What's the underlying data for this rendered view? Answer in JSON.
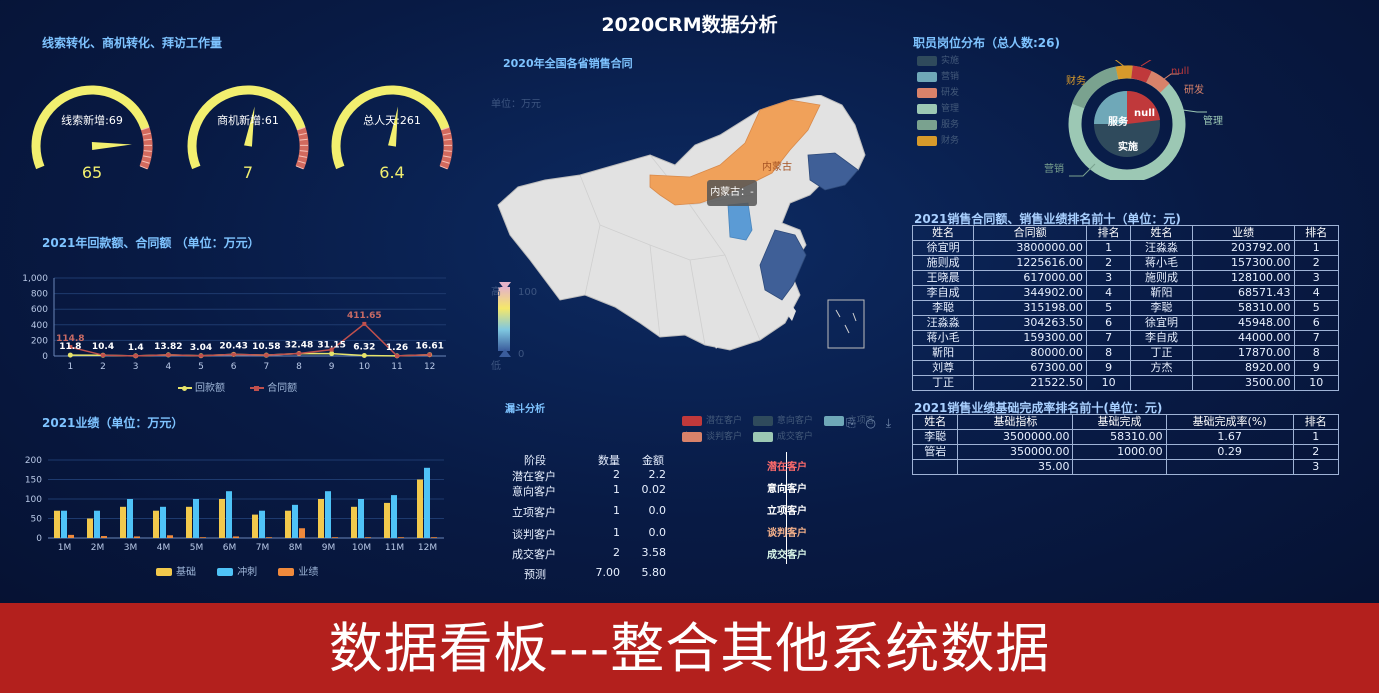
{
  "page_title": "2020CRM数据分析",
  "banner": "数据看板---整合其他系统数据",
  "gauges": {
    "title": "线索转化、商机转化、拜访工作量",
    "items": [
      {
        "label": "线索新增:69",
        "value": "65",
        "fraction": 0.65
      },
      {
        "label": "商机新增:61",
        "value": "7",
        "fraction": 0.07
      },
      {
        "label": "总人天:261",
        "value": "6.4",
        "fraction": 0.064
      }
    ]
  },
  "payments": {
    "title": "2021年回款额、合同额 （单位：万元）",
    "legend": [
      "回款额",
      "合同额"
    ],
    "chart_data": {
      "type": "line",
      "x": [
        "1",
        "2",
        "3",
        "4",
        "5",
        "6",
        "7",
        "8",
        "9",
        "10",
        "11",
        "12"
      ],
      "y_ticks": [
        "0",
        "200",
        "400",
        "600",
        "800",
        "1,000"
      ],
      "ylim": [
        0,
        1000
      ],
      "series": [
        {
          "name": "回款额",
          "values": [
            11.8,
            10.4,
            1.4,
            13.82,
            3.04,
            20.43,
            10.58,
            32.48,
            31.15,
            6.32,
            1.26,
            16.61
          ],
          "color": "#e6e36a"
        },
        {
          "name": "合同额",
          "values": [
            114.8,
            10.4,
            1.4,
            13.82,
            3.04,
            20.43,
            10.58,
            32.48,
            81.15,
            411.65,
            1.26,
            16.61
          ],
          "color": "#c0504d"
        }
      ],
      "labels": [
        {
          "text": "114.8",
          "i": 0,
          "v": 114.8,
          "color": "#c86a64"
        },
        {
          "text": "11.8",
          "i": 0,
          "v": 11.8,
          "color": "#ffffff"
        },
        {
          "text": "10.4",
          "i": 1,
          "v": 10.4,
          "color": "#ffffff"
        },
        {
          "text": "1.4",
          "i": 2,
          "v": 1.4,
          "color": "#ffffff"
        },
        {
          "text": "13.82",
          "i": 3,
          "v": 13.82,
          "color": "#ffffff"
        },
        {
          "text": "3.04",
          "i": 4,
          "v": 3.04,
          "color": "#ffffff"
        },
        {
          "text": "20.43",
          "i": 5,
          "v": 20.43,
          "color": "#ffffff"
        },
        {
          "text": "10.58",
          "i": 6,
          "v": 10.58,
          "color": "#ffffff"
        },
        {
          "text": "32.48",
          "i": 7,
          "v": 32.48,
          "color": "#ffffff"
        },
        {
          "text": "31.15",
          "i": 8,
          "v": 31.15,
          "color": "#ffffff"
        },
        {
          "text": "411.65",
          "i": 9,
          "v": 411.65,
          "color": "#c86a64"
        },
        {
          "text": "6.32",
          "i": 9,
          "v": 6.32,
          "color": "#ffffff"
        },
        {
          "text": "1.26",
          "i": 10,
          "v": 1.26,
          "color": "#ffffff"
        },
        {
          "text": "16.61",
          "i": 11,
          "v": 16.61,
          "color": "#ffffff"
        }
      ]
    }
  },
  "performance": {
    "title": "2021业绩（单位：万元）",
    "legend": [
      "基础",
      "冲刺",
      "业绩"
    ],
    "chart_data": {
      "type": "bar",
      "categories": [
        "1M",
        "2M",
        "3M",
        "4M",
        "5M",
        "6M",
        "7M",
        "8M",
        "9M",
        "10M",
        "11M",
        "12M"
      ],
      "y_ticks": [
        "0",
        "50",
        "100",
        "150",
        "200"
      ],
      "ylim": [
        0,
        200
      ],
      "series": [
        {
          "name": "基础",
          "color": "#f2c94c",
          "values": [
            70,
            50,
            80,
            70,
            80,
            100,
            60,
            70,
            100,
            80,
            90,
            150
          ]
        },
        {
          "name": "冲刺",
          "color": "#4fc3f7",
          "values": [
            70,
            70,
            100,
            80,
            100,
            120,
            70,
            85,
            120,
            100,
            110,
            180
          ]
        },
        {
          "name": "业绩",
          "color": "#f08a3c",
          "values": [
            8,
            5,
            4,
            7,
            2,
            4,
            2,
            25,
            2,
            2,
            2,
            2
          ]
        }
      ]
    }
  },
  "map": {
    "title": "2020年全国各省销售合同",
    "unit": "单位：万元",
    "scale_high": "高",
    "scale_low": "低",
    "scale_max": "100",
    "scale_min": "0",
    "region_label": "内蒙古",
    "tooltip": "内蒙古：-"
  },
  "funnel": {
    "title": "漏斗分析",
    "legend": [
      "潜在客户",
      "意向客户",
      "立项客户",
      "谈判客户",
      "成交客户"
    ],
    "legend_colors": [
      "#c0393b",
      "#2f4a5c",
      "#6fa8b8",
      "#d9826a",
      "#9cc8b4"
    ],
    "headers": [
      "阶段",
      "数量",
      "金额"
    ],
    "rows": [
      {
        "stage": "潜在客户",
        "count": "2",
        "amount": "2.2"
      },
      {
        "stage": "意向客户",
        "count": "1",
        "amount": "0.02"
      },
      {
        "stage": "立项客户",
        "count": "1",
        "amount": "0.0"
      },
      {
        "stage": "谈判客户",
        "count": "1",
        "amount": "0.0"
      },
      {
        "stage": "成交客户",
        "count": "2",
        "amount": "3.58"
      },
      {
        "stage": "预测",
        "count": "7.00",
        "amount": "5.80"
      }
    ],
    "labels": [
      "潜在客户",
      "意向客户",
      "立项客户",
      "谈判客户",
      "成交客户"
    ],
    "label_colors": [
      "#ff6b6b",
      "#ffffff",
      "#ffffff",
      "#f3b08a",
      "#d8f5e8"
    ]
  },
  "staff": {
    "title": "职员岗位分布（总人数:26)",
    "legend": [
      "实施",
      "营销",
      "研发",
      "管理",
      "服务",
      "财务"
    ],
    "legend_colors": [
      "#2f4a5c",
      "#6fa8b8",
      "#d9826a",
      "#9cc8b4",
      "#7aa28f",
      "#d79a2b"
    ],
    "outer_labels": [
      "null",
      "研发",
      "管理",
      "营销",
      "财务"
    ],
    "inner_labels": [
      "服务",
      "null",
      "实施"
    ]
  },
  "ranking": {
    "title": "2021销售合同额、销售业绩排名前十（单位：元)",
    "headers": [
      "姓名",
      "合同额",
      "排名",
      "姓名",
      "业绩",
      "排名"
    ],
    "rows": [
      [
        "徐宜明",
        "3800000.00",
        "1",
        "汪淼淼",
        "203792.00",
        "1"
      ],
      [
        "施则成",
        "1225616.00",
        "2",
        "蒋小毛",
        "157300.00",
        "2"
      ],
      [
        "王晓晨",
        "617000.00",
        "3",
        "施则成",
        "128100.00",
        "3"
      ],
      [
        "李自成",
        "344902.00",
        "4",
        "靳阳",
        "68571.43",
        "4"
      ],
      [
        "李聪",
        "315198.00",
        "5",
        "李聪",
        "58310.00",
        "5"
      ],
      [
        "汪淼淼",
        "304263.50",
        "6",
        "徐宜明",
        "45948.00",
        "6"
      ],
      [
        "蒋小毛",
        "159300.00",
        "7",
        "李自成",
        "44000.00",
        "7"
      ],
      [
        "靳阳",
        "80000.00",
        "8",
        "丁正",
        "17870.00",
        "8"
      ],
      [
        "刘尊",
        "67300.00",
        "9",
        "方杰",
        "8920.00",
        "9"
      ],
      [
        "丁正",
        "21522.50",
        "10",
        "",
        "3500.00",
        "10"
      ]
    ]
  },
  "completion": {
    "title": "2021销售业绩基础完成率排名前十(单位：元)",
    "headers": [
      "姓名",
      "基础指标",
      "基础完成",
      "基础完成率(%)",
      "排名"
    ],
    "rows": [
      [
        "李聪",
        "3500000.00",
        "58310.00",
        "1.67",
        "1"
      ],
      [
        "管岩",
        "350000.00",
        "1000.00",
        "0.29",
        "2"
      ],
      [
        "",
        "35.00",
        "",
        "",
        "3"
      ]
    ]
  }
}
